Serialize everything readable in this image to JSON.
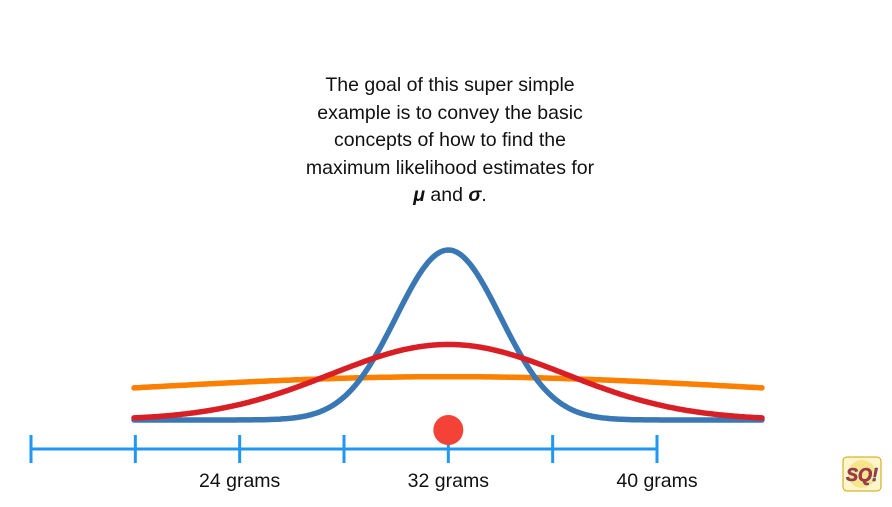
{
  "caption": {
    "line1": "The goal of this super simple",
    "line2": "example is to convey the basic",
    "line3": "concepts of how to find the",
    "line4": "maximum likelihood estimates for",
    "mu": "μ",
    "and": " and ",
    "sigma": "σ",
    "period": "."
  },
  "axis": {
    "unit": "grams",
    "tick_values": [
      20,
      24,
      28,
      32,
      36,
      40
    ],
    "labeled_ticks": [
      {
        "value": 24,
        "label": "24 grams"
      },
      {
        "value": 32,
        "label": "32 grams"
      },
      {
        "value": 40,
        "label": "40 grams"
      }
    ],
    "range": [
      16,
      40
    ]
  },
  "observation": {
    "value": 32,
    "color": "#f44336"
  },
  "curves": [
    {
      "mean": 32,
      "sd": 2,
      "color": "#3a78b5"
    },
    {
      "mean": 32,
      "sd": 4.5,
      "color": "#d81f26"
    },
    {
      "mean": 32,
      "sd": 12,
      "color": "#fb7f00"
    }
  ],
  "axis_color": "#2196f3",
  "logo": {
    "text": "SQ!",
    "icon": "statquest-logo-icon"
  }
}
